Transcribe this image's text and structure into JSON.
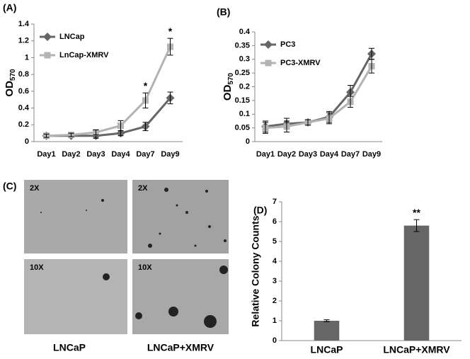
{
  "chart_data": [
    {
      "type": "line",
      "label": "(A)",
      "ylabel": "OD",
      "ylabel_sub": "570",
      "categories": [
        "Day1",
        "Day2",
        "Day3",
        "Day4",
        "Day7",
        "Day9"
      ],
      "series": [
        {
          "name": "LNCap",
          "color": "#666666",
          "marker": "diamond",
          "values": [
            0.07,
            0.07,
            0.07,
            0.1,
            0.18,
            0.52
          ],
          "errors": [
            0.02,
            0.02,
            0.03,
            0.03,
            0.05,
            0.07
          ]
        },
        {
          "name": "LnCap-XMRV",
          "color": "#b3b3b3",
          "marker": "square",
          "values": [
            0.07,
            0.08,
            0.11,
            0.19,
            0.49,
            1.13
          ],
          "errors": [
            0.02,
            0.02,
            0.03,
            0.06,
            0.09,
            0.1
          ]
        }
      ],
      "annotations": [
        {
          "text": "*",
          "x": "Day7"
        },
        {
          "text": "*",
          "x": "Day9"
        }
      ],
      "ylim": [
        0,
        1.4
      ],
      "yticks": [
        0,
        0.2,
        0.4,
        0.6,
        0.8,
        1,
        1.2,
        1.4
      ],
      "legend": "upper left"
    },
    {
      "type": "line",
      "label": "(B)",
      "ylabel": "OD",
      "ylabel_sub": "570",
      "categories": [
        "Day1",
        "Day2",
        "Day3",
        "Day4",
        "Day7",
        "Day9"
      ],
      "series": [
        {
          "name": "PC3",
          "color": "#666666",
          "marker": "diamond",
          "values": [
            0.055,
            0.065,
            0.07,
            0.09,
            0.18,
            0.32
          ],
          "errors": [
            0.02,
            0.02,
            0.01,
            0.02,
            0.025,
            0.02
          ]
        },
        {
          "name": "PC3-XMRV",
          "color": "#b3b3b3",
          "marker": "square",
          "values": [
            0.05,
            0.055,
            0.07,
            0.085,
            0.145,
            0.275
          ],
          "errors": [
            0.02,
            0.02,
            0.01,
            0.02,
            0.02,
            0.025
          ]
        }
      ],
      "annotations": [],
      "ylim": [
        0,
        0.4
      ],
      "yticks": [
        0,
        0.05,
        0.1,
        0.15,
        0.2,
        0.25,
        0.3,
        0.35,
        0.4
      ],
      "legend": "upper left"
    },
    {
      "type": "bar",
      "label": "(D)",
      "ylabel": "Relative Colony Counts",
      "categories": [
        "LNCaP",
        "LNCaP+XMRV"
      ],
      "values": [
        1,
        5.8
      ],
      "errors": [
        0.05,
        0.3
      ],
      "color": "#666666",
      "annotations": [
        {
          "text": "**",
          "x": "LNCaP+XMRV"
        }
      ],
      "ylim": [
        0,
        7
      ],
      "yticks": [
        0,
        1,
        2,
        3,
        4,
        5,
        6,
        7
      ]
    }
  ],
  "image_panel": {
    "label": "(C)",
    "magnifications": [
      "2X",
      "2X",
      "10X",
      "10X"
    ],
    "captions": [
      "LNCaP",
      "LNCaP+XMRV"
    ]
  }
}
